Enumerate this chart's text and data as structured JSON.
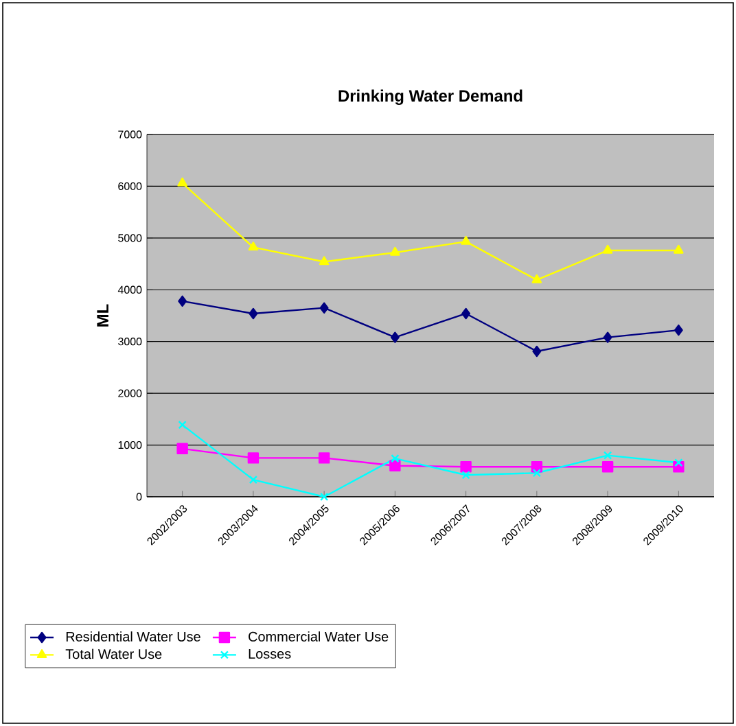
{
  "chart_data": {
    "type": "line",
    "title": "Drinking Water Demand",
    "ylabel": "ML",
    "categories": [
      "2002/2003",
      "2003/2004",
      "2004/2005",
      "2005/2006",
      "2006/2007",
      "2007/2008",
      "2008/2009",
      "2009/2010"
    ],
    "series": [
      {
        "name": "Residential Water Use",
        "color": "#000080",
        "marker": "diamond",
        "values": [
          3780,
          3540,
          3650,
          3080,
          3540,
          2810,
          3080,
          3220
        ]
      },
      {
        "name": "Commercial Water Use",
        "color": "#ff00ff",
        "marker": "square",
        "values": [
          930,
          750,
          750,
          600,
          580,
          580,
          580,
          580
        ]
      },
      {
        "name": "Total Water Use",
        "color": "#ffff00",
        "marker": "triangle",
        "values": [
          6060,
          4820,
          4540,
          4720,
          4930,
          4190,
          4760,
          4760
        ]
      },
      {
        "name": "Losses",
        "color": "#00ffff",
        "marker": "cross",
        "values": [
          1390,
          330,
          0,
          740,
          420,
          460,
          800,
          660
        ]
      }
    ],
    "ylim": [
      0,
      7000
    ],
    "yticks": [
      0,
      1000,
      2000,
      3000,
      4000,
      5000,
      6000,
      7000
    ],
    "grid": "y",
    "legend": "bottom"
  }
}
